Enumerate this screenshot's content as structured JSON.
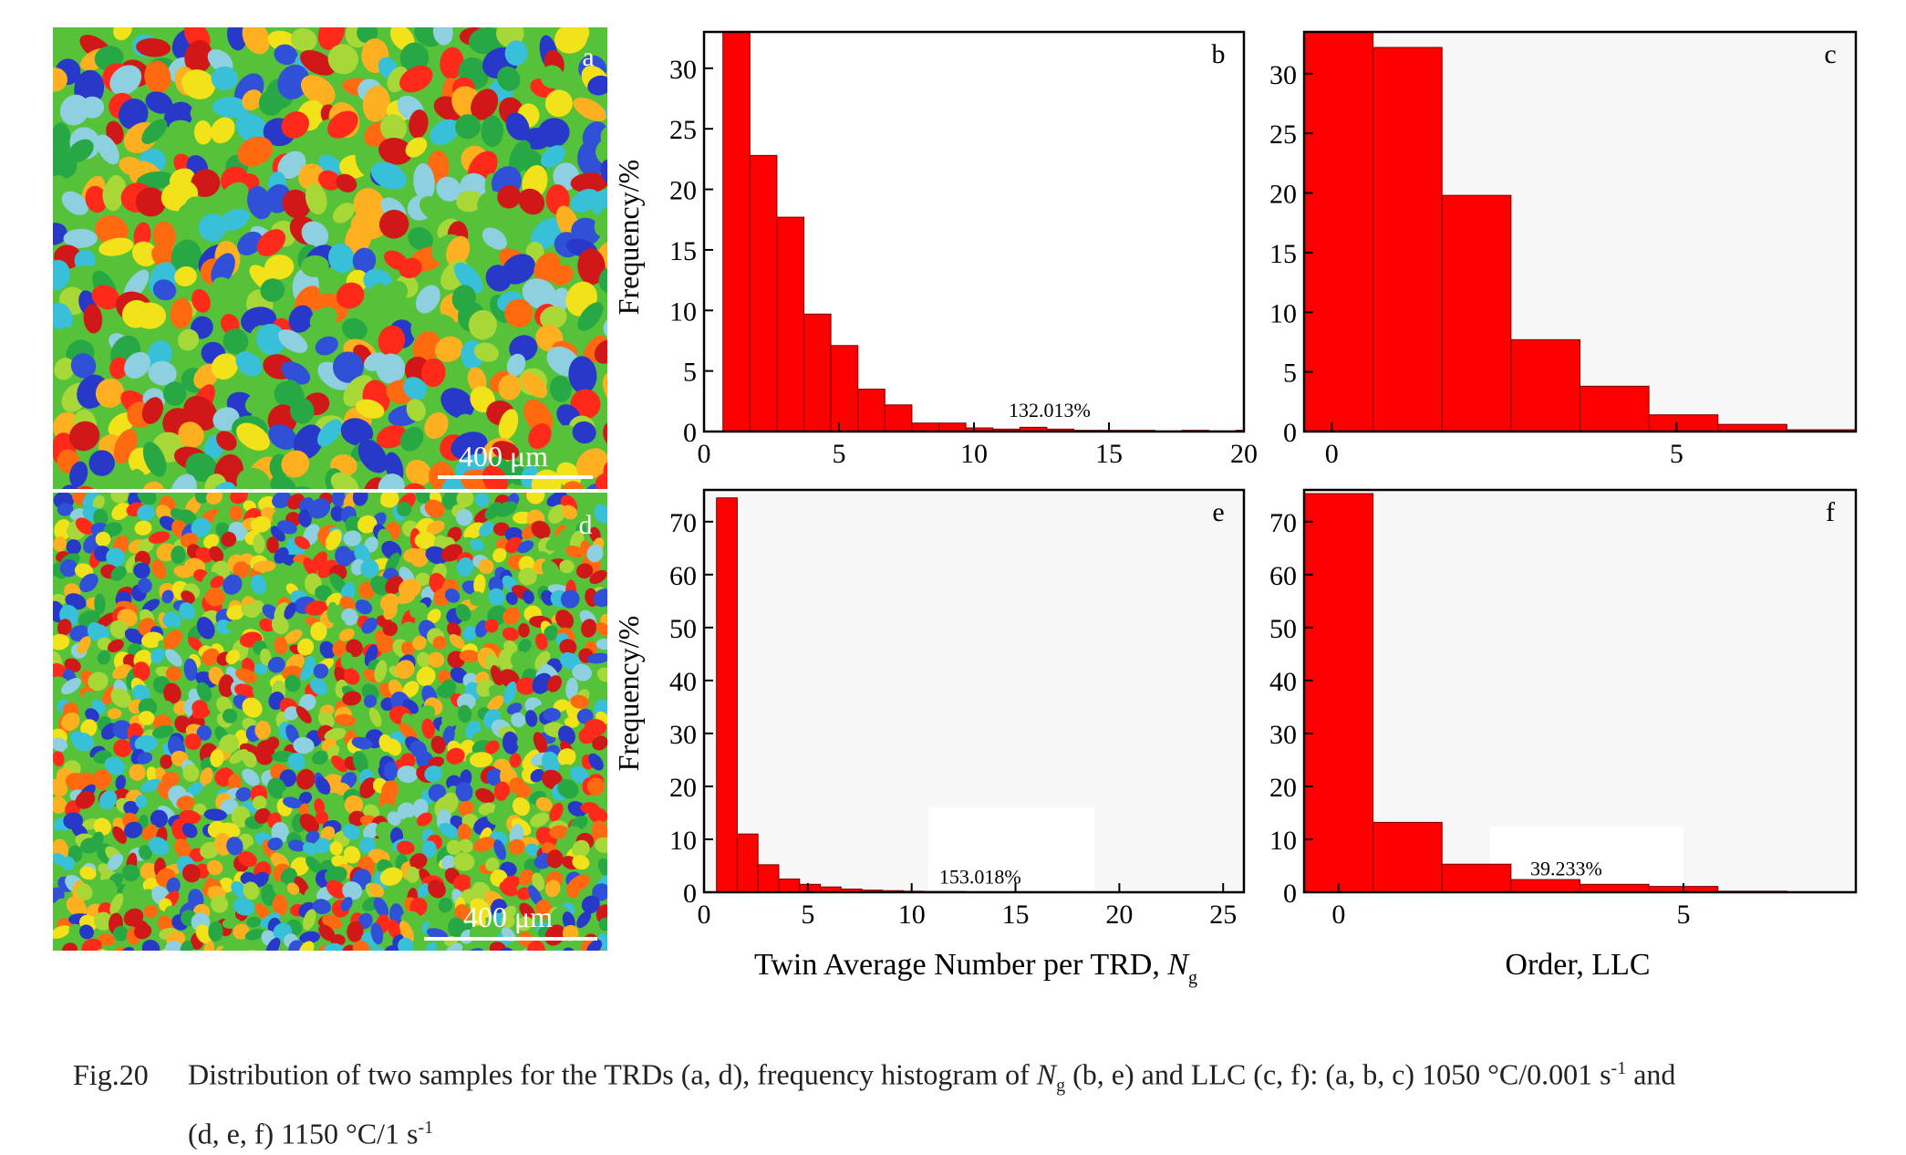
{
  "figure": {
    "colors": {
      "bar_fill": "#ff0000",
      "bar_edge": "#7a0000",
      "panel_b_bg": "#ffffff",
      "panel_c_bg": "#f7f7f7",
      "panel_e_bg": "#f7f7f7",
      "panel_f_bg": "#f7f7f7",
      "ebsd_palette": [
        "#d01818",
        "#ff2a1a",
        "#ff6a10",
        "#ffb020",
        "#f2e21a",
        "#a8d838",
        "#55c23a",
        "#28a845",
        "#38c0d8",
        "#8fd0e0",
        "#2838c8",
        "#3050d8"
      ]
    },
    "panels": [
      {
        "id": "a",
        "letter": "a",
        "scalebar": "400 μm",
        "kind": "ebsd-map"
      },
      {
        "id": "d",
        "letter": "d",
        "scalebar": "400 μm",
        "kind": "ebsd-map"
      }
    ],
    "shared_xlabels": {
      "left_prefix": "Twin Average Number per TRD, ",
      "left_var": "N",
      "left_sub": "g",
      "right": "Order, LLC"
    },
    "caption": {
      "number": "Fig.20",
      "t1": "Distribution of two samples for the TRDs (a, d), frequency histogram of ",
      "var": "N",
      "sub": "g",
      "t2": " (b, e) and LLC (c, f): (a, b, c) 1050 °C/0.001 s",
      "sup1": "-1",
      "t3": " and",
      "t4": "(d, e, f) 1150 °C/1 s",
      "sup2": "-1"
    }
  },
  "chart_data": [
    {
      "id": "b",
      "type": "bar",
      "panel_label": "b",
      "xlabel": "",
      "ylabel": "Frequency/%",
      "xlim": [
        0,
        20
      ],
      "ylim": [
        0,
        33
      ],
      "xticks": [
        0,
        5,
        10,
        15,
        20
      ],
      "yticks": [
        0,
        5,
        10,
        15,
        20,
        25,
        30
      ],
      "annotation": {
        "text": "132.013%",
        "x": 12.8,
        "y": 1.2
      },
      "bins": [
        [
          0.7,
          1.7,
          33.0
        ],
        [
          1.7,
          2.7,
          22.8
        ],
        [
          2.7,
          3.7,
          17.7
        ],
        [
          3.7,
          4.7,
          9.7
        ],
        [
          4.7,
          5.7,
          7.1
        ],
        [
          5.7,
          6.7,
          3.5
        ],
        [
          6.7,
          7.7,
          2.2
        ],
        [
          7.7,
          8.7,
          0.7
        ],
        [
          8.7,
          9.7,
          0.7
        ],
        [
          9.7,
          10.7,
          0.3
        ],
        [
          10.7,
          11.7,
          0.2
        ],
        [
          11.7,
          12.7,
          0.35
        ],
        [
          12.7,
          13.7,
          0.2
        ],
        [
          13.7,
          14.7,
          0.1
        ],
        [
          14.7,
          15.7,
          0.1
        ],
        [
          15.7,
          16.7,
          0.1
        ],
        [
          16.7,
          17.7,
          0.05
        ],
        [
          17.7,
          18.7,
          0.1
        ],
        [
          18.7,
          19.7,
          0.05
        ],
        [
          19.7,
          20.0,
          0.1
        ]
      ]
    },
    {
      "id": "c",
      "type": "bar",
      "panel_label": "c",
      "xlabel": "",
      "ylabel": "",
      "xlim": [
        -0.4,
        7.6
      ],
      "ylim": [
        0,
        33.5
      ],
      "xticks": [
        0,
        5
      ],
      "yticks": [
        0,
        5,
        10,
        15,
        20,
        25,
        30
      ],
      "annotation": null,
      "bins": [
        [
          -0.4,
          0.6,
          33.5
        ],
        [
          0.6,
          1.6,
          32.2
        ],
        [
          1.6,
          2.6,
          19.8
        ],
        [
          2.6,
          3.6,
          7.7
        ],
        [
          3.6,
          4.6,
          3.8
        ],
        [
          4.6,
          5.6,
          1.4
        ],
        [
          5.6,
          6.6,
          0.6
        ],
        [
          6.6,
          7.6,
          0.15
        ]
      ]
    },
    {
      "id": "e",
      "type": "bar",
      "panel_label": "e",
      "xlabel": "",
      "ylabel": "Frequency/%",
      "xlim": [
        0,
        26
      ],
      "ylim": [
        0,
        76
      ],
      "xticks": [
        0,
        5,
        10,
        15,
        20,
        25
      ],
      "yticks": [
        0,
        10,
        20,
        30,
        40,
        50,
        60,
        70
      ],
      "annotation": {
        "text": "153.018%",
        "x": 13.3,
        "y": 1.6
      },
      "bins": [
        [
          0.6,
          1.6,
          74.5
        ],
        [
          1.6,
          2.6,
          11.0
        ],
        [
          2.6,
          3.6,
          5.2
        ],
        [
          3.6,
          4.6,
          2.5
        ],
        [
          4.6,
          5.6,
          1.5
        ],
        [
          5.6,
          6.6,
          1.0
        ],
        [
          6.6,
          7.6,
          0.6
        ],
        [
          7.6,
          8.6,
          0.4
        ],
        [
          8.6,
          9.6,
          0.3
        ],
        [
          9.6,
          10.6,
          0.2
        ],
        [
          10.6,
          11.6,
          0.15
        ],
        [
          11.6,
          12.6,
          0.15
        ],
        [
          12.6,
          13.6,
          0.1
        ],
        [
          13.6,
          14.6,
          0.1
        ],
        [
          14.6,
          15.6,
          0.1
        ],
        [
          15.6,
          16.6,
          0.1
        ],
        [
          16.6,
          17.6,
          0.1
        ],
        [
          17.6,
          18.6,
          0.05
        ],
        [
          18.6,
          19.6,
          0.05
        ],
        [
          19.6,
          20.6,
          0.05
        ],
        [
          20.6,
          21.6,
          0.05
        ],
        [
          21.6,
          22.6,
          0.05
        ],
        [
          22.6,
          23.6,
          0.05
        ],
        [
          23.6,
          24.6,
          0.05
        ],
        [
          24.6,
          25.6,
          0.05
        ]
      ]
    },
    {
      "id": "f",
      "type": "bar",
      "panel_label": "f",
      "xlabel": "",
      "ylabel": "",
      "xlim": [
        -0.5,
        7.5
      ],
      "ylim": [
        0,
        76
      ],
      "xticks": [
        0,
        5
      ],
      "yticks": [
        0,
        10,
        20,
        30,
        40,
        50,
        60,
        70
      ],
      "annotation": {
        "text": "39.233%",
        "x": 3.3,
        "y": 3.2
      },
      "bins": [
        [
          -0.5,
          0.5,
          75.3
        ],
        [
          0.5,
          1.5,
          13.2
        ],
        [
          1.5,
          2.5,
          5.3
        ],
        [
          2.5,
          3.5,
          2.4
        ],
        [
          3.5,
          4.5,
          1.5
        ],
        [
          4.5,
          5.5,
          1.1
        ],
        [
          5.5,
          6.5,
          0.2
        ],
        [
          6.5,
          7.5,
          0.1
        ]
      ]
    }
  ]
}
